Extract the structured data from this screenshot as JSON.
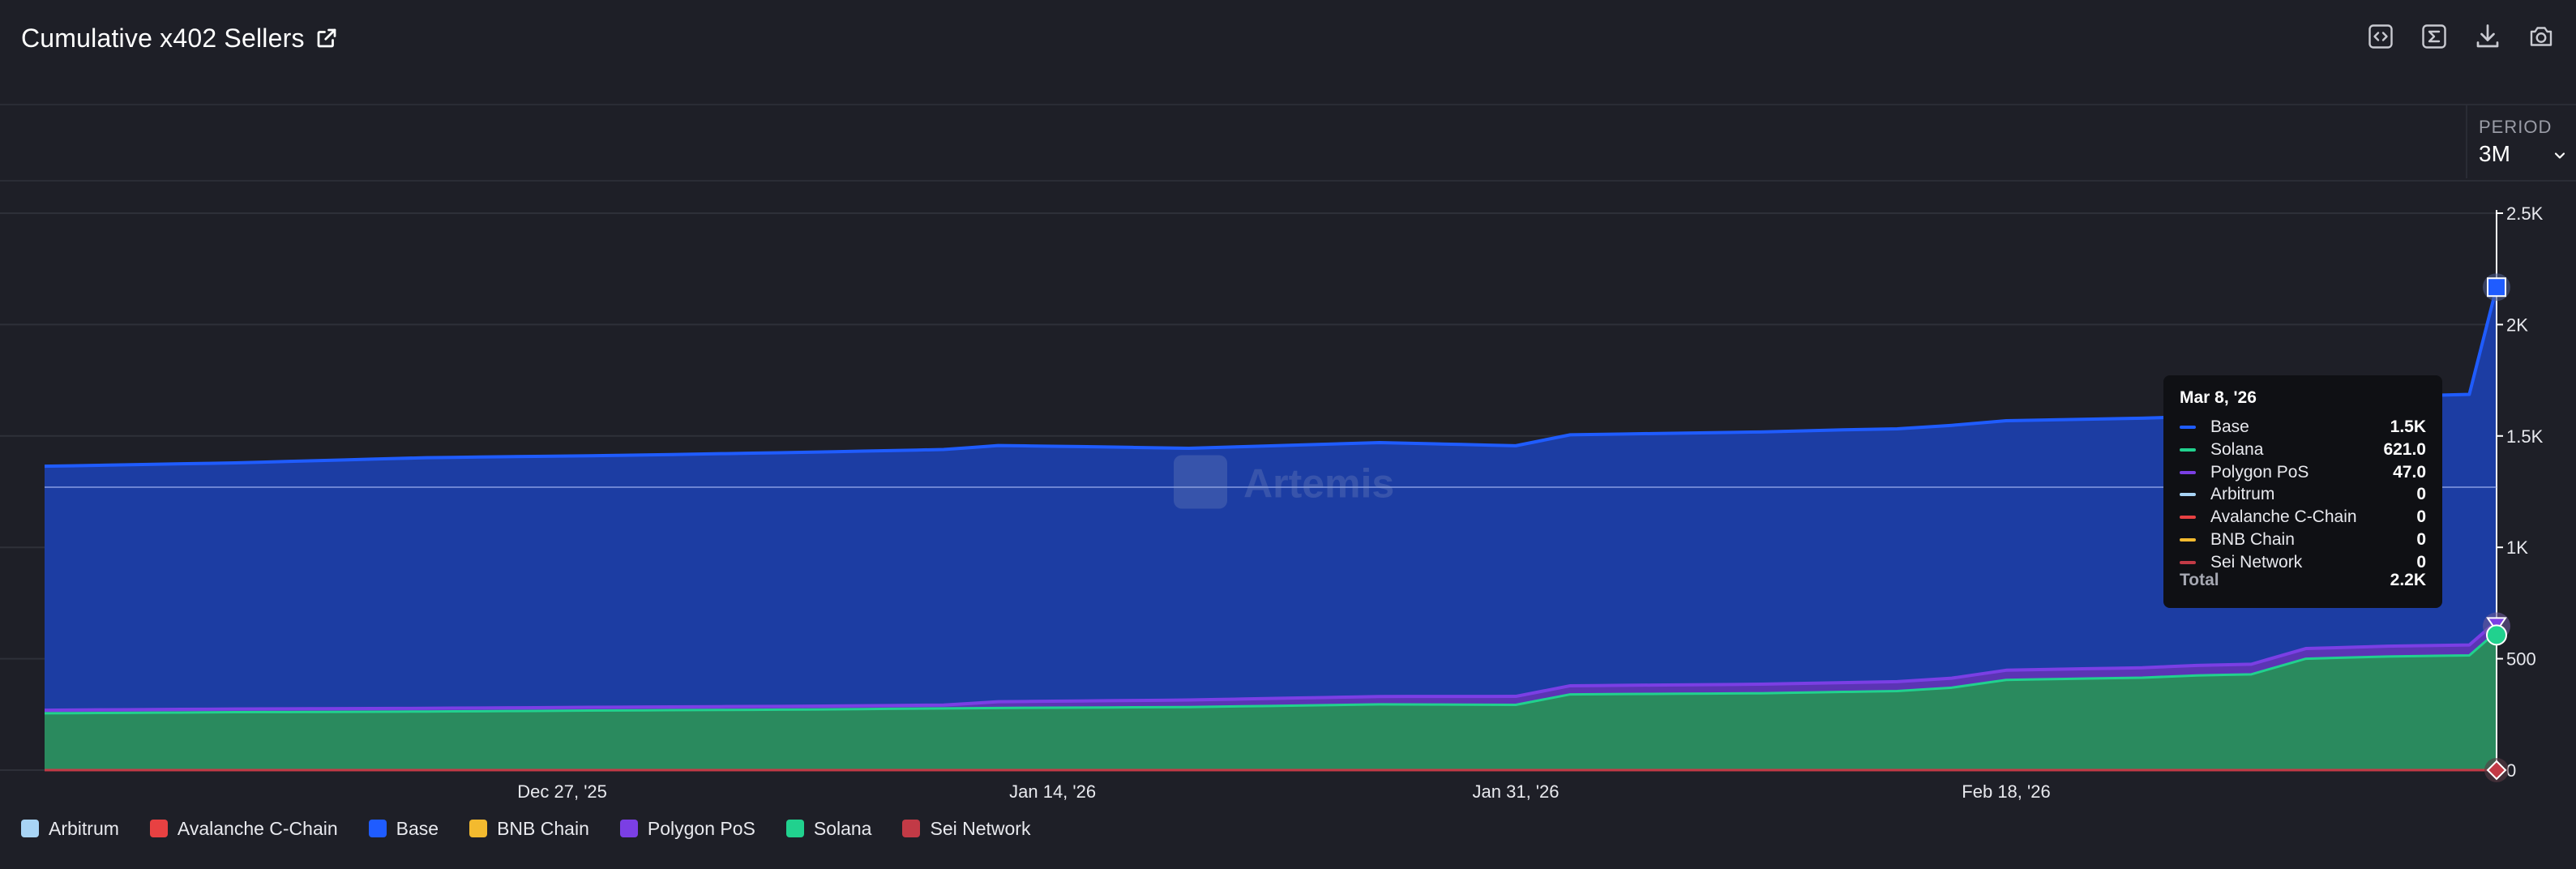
{
  "header": {
    "title": "Cumulative x402 Sellers",
    "toolbar": [
      "code-icon",
      "sigma-icon",
      "download-icon",
      "camera-icon"
    ]
  },
  "period": {
    "label": "PERIOD",
    "value": "3M"
  },
  "watermark": "Artemis",
  "tooltip": {
    "date": "Mar 8, '26",
    "rows": [
      {
        "name": "Base",
        "value": "1.5K",
        "color": "#1f5cff"
      },
      {
        "name": "Solana",
        "value": "621.0",
        "color": "#21d18e"
      },
      {
        "name": "Polygon PoS",
        "value": "47.0",
        "color": "#7b3fe4"
      },
      {
        "name": "Arbitrum",
        "value": "0",
        "color": "#a8d4f5"
      },
      {
        "name": "Avalanche C-Chain",
        "value": "0",
        "color": "#e84142"
      },
      {
        "name": "BNB Chain",
        "value": "0",
        "color": "#f3ba2f"
      },
      {
        "name": "Sei Network",
        "value": "0",
        "color": "#c23a46"
      }
    ],
    "total_label": "Total",
    "total_value": "2.2K"
  },
  "legend": [
    {
      "name": "Arbitrum",
      "color": "#a8d4f5"
    },
    {
      "name": "Avalanche C-Chain",
      "color": "#e84142"
    },
    {
      "name": "Base",
      "color": "#1f5cff"
    },
    {
      "name": "BNB Chain",
      "color": "#f3ba2f"
    },
    {
      "name": "Polygon PoS",
      "color": "#7b3fe4"
    },
    {
      "name": "Solana",
      "color": "#21d18e"
    },
    {
      "name": "Sei Network",
      "color": "#c23a46"
    }
  ],
  "chart_data": {
    "type": "area",
    "stacked": true,
    "title": "Cumulative x402 Sellers",
    "xlim": [
      "2025-12-08",
      "2026-03-08"
    ],
    "ylim": [
      0,
      2500
    ],
    "y_ticks": [
      0,
      500,
      1000,
      1500,
      2000,
      2500
    ],
    "y_tick_labels": [
      "0",
      "500",
      "1K",
      "1.5K",
      "2K",
      "2.5K"
    ],
    "x_ticks": [
      "2025-12-27",
      "2026-01-14",
      "2026-01-31",
      "2026-02-18"
    ],
    "x_tick_labels": [
      "Dec 27, '25",
      "Jan 14, '26",
      "Jan 31, '26",
      "Feb 18, '26"
    ],
    "grid": true,
    "legend_position": "bottom",
    "series": [
      {
        "name": "Solana",
        "color": "#21d18e",
        "x": [
          "2025-12-08",
          "2025-12-15",
          "2025-12-22",
          "2025-12-29",
          "2026-01-05",
          "2026-01-12",
          "2026-01-19",
          "2026-01-26",
          "2026-01-31",
          "2026-02-02",
          "2026-02-09",
          "2026-02-14",
          "2026-02-16",
          "2026-02-18",
          "2026-02-23",
          "2026-02-25",
          "2026-02-27",
          "2026-03-01",
          "2026-03-04",
          "2026-03-07",
          "2026-03-08"
        ],
        "values": [
          255,
          260,
          263,
          268,
          272,
          279,
          283,
          295,
          293,
          340,
          345,
          355,
          370,
          405,
          415,
          425,
          430,
          500,
          510,
          515,
          621
        ]
      },
      {
        "name": "Polygon PoS",
        "color": "#7b3fe4",
        "x": [
          "2025-12-08",
          "2026-01-10",
          "2026-01-12",
          "2026-01-31",
          "2026-02-14",
          "2026-02-20",
          "2026-03-08"
        ],
        "values": [
          14,
          15,
          28,
          38,
          42,
          44,
          47
        ]
      },
      {
        "name": "Base",
        "color": "#1f5cff",
        "x": [
          "2025-12-08",
          "2025-12-15",
          "2025-12-22",
          "2025-12-29",
          "2026-01-05",
          "2026-01-12",
          "2026-01-15",
          "2026-01-19",
          "2026-01-26",
          "2026-01-31",
          "2026-02-06",
          "2026-02-12",
          "2026-02-16",
          "2026-02-18",
          "2026-02-23",
          "2026-02-27",
          "2026-03-01",
          "2026-03-04",
          "2026-03-07",
          "2026-03-08"
        ],
        "values": [
          1095,
          1105,
          1125,
          1130,
          1140,
          1150,
          1142,
          1130,
          1140,
          1125,
          1130,
          1135,
          1135,
          1120,
          1120,
          1115,
          1125,
          1120,
          1125,
          1500
        ]
      },
      {
        "name": "Arbitrum",
        "color": "#a8d4f5",
        "x": [
          "2025-12-08",
          "2026-03-08"
        ],
        "values": [
          0,
          0
        ]
      },
      {
        "name": "Avalanche C-Chain",
        "color": "#e84142",
        "x": [
          "2025-12-08",
          "2026-03-08"
        ],
        "values": [
          0,
          0
        ]
      },
      {
        "name": "BNB Chain",
        "color": "#f3ba2f",
        "x": [
          "2025-12-08",
          "2026-03-08"
        ],
        "values": [
          0,
          0
        ]
      },
      {
        "name": "Sei Network",
        "color": "#c23a46",
        "x": [
          "2025-12-08",
          "2026-03-08"
        ],
        "values": [
          0,
          0
        ]
      }
    ]
  }
}
